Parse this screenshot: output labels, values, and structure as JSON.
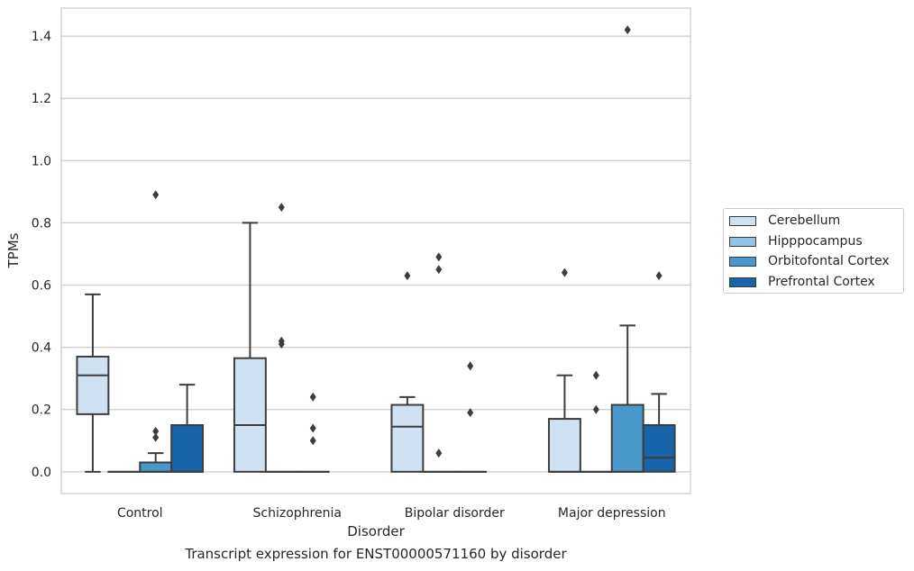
{
  "chart_data": {
    "type": "boxplot",
    "caption": "Transcript expression for ENST00000571160 by disorder",
    "xlabel": "Disorder",
    "ylabel": "TPMs",
    "ylim": [
      -0.07,
      1.49
    ],
    "yticks": [
      "0.0",
      "0.2",
      "0.4",
      "0.6",
      "0.8",
      "1.0",
      "1.2",
      "1.4"
    ],
    "ytick_values": [
      0.0,
      0.2,
      0.4,
      0.6,
      0.8,
      1.0,
      1.2,
      1.4
    ],
    "categories": [
      "Control",
      "Schizophrenia",
      "Bipolar disorder",
      "Major depression"
    ],
    "grid": "horizontal",
    "legend_position": "right",
    "series": [
      {
        "name": "Cerebellum",
        "color": "#d0e1f2",
        "boxes": [
          {
            "whislo": 0.0,
            "q1": 0.185,
            "med": 0.31,
            "q3": 0.37,
            "whishi": 0.57,
            "fliers": []
          },
          {
            "whislo": 0.0,
            "q1": 0.0,
            "med": 0.15,
            "q3": 0.365,
            "whishi": 0.8,
            "fliers": []
          },
          {
            "whislo": 0.0,
            "q1": 0.0,
            "med": 0.145,
            "q3": 0.215,
            "whishi": 0.24,
            "fliers": [
              0.63
            ]
          },
          {
            "whislo": 0.0,
            "q1": 0.0,
            "med": 0.0,
            "q3": 0.17,
            "whishi": 0.31,
            "fliers": [
              0.64
            ]
          }
        ]
      },
      {
        "name": "Hipppocampus",
        "color": "#94c4df",
        "boxes": [
          {
            "whislo": 0.0,
            "q1": 0.0,
            "med": 0.0,
            "q3": 0.0,
            "whishi": 0.0,
            "fliers": []
          },
          {
            "whislo": 0.0,
            "q1": 0.0,
            "med": 0.0,
            "q3": 0.0,
            "whishi": 0.0,
            "fliers": [
              0.41,
              0.42,
              0.85
            ]
          },
          {
            "whislo": 0.0,
            "q1": 0.0,
            "med": 0.0,
            "q3": 0.0,
            "whishi": 0.0,
            "fliers": [
              0.06,
              0.65,
              0.69
            ]
          },
          {
            "whislo": 0.0,
            "q1": 0.0,
            "med": 0.0,
            "q3": 0.0,
            "whishi": 0.0,
            "fliers": [
              0.2,
              0.31
            ]
          }
        ]
      },
      {
        "name": "Orbitofontal Cortex",
        "color": "#4a98c9",
        "boxes": [
          {
            "whislo": 0.0,
            "q1": 0.0,
            "med": 0.0,
            "q3": 0.03,
            "whishi": 0.06,
            "fliers": [
              0.11,
              0.13,
              0.89
            ]
          },
          {
            "whislo": 0.0,
            "q1": 0.0,
            "med": 0.0,
            "q3": 0.0,
            "whishi": 0.0,
            "fliers": [
              0.1,
              0.14,
              0.24
            ]
          },
          {
            "whislo": 0.0,
            "q1": 0.0,
            "med": 0.0,
            "q3": 0.0,
            "whishi": 0.0,
            "fliers": [
              0.19,
              0.34
            ]
          },
          {
            "whislo": 0.0,
            "q1": 0.0,
            "med": 0.0,
            "q3": 0.215,
            "whishi": 0.47,
            "fliers": [
              1.42
            ]
          }
        ]
      },
      {
        "name": "Prefrontal Cortex",
        "color": "#1764ab",
        "boxes": [
          {
            "whislo": 0.0,
            "q1": 0.0,
            "med": 0.0,
            "q3": 0.15,
            "whishi": 0.28,
            "fliers": []
          },
          null,
          null,
          {
            "whislo": 0.0,
            "q1": 0.0,
            "med": 0.045,
            "q3": 0.15,
            "whishi": 0.25,
            "fliers": [
              0.63
            ]
          }
        ]
      }
    ]
  }
}
